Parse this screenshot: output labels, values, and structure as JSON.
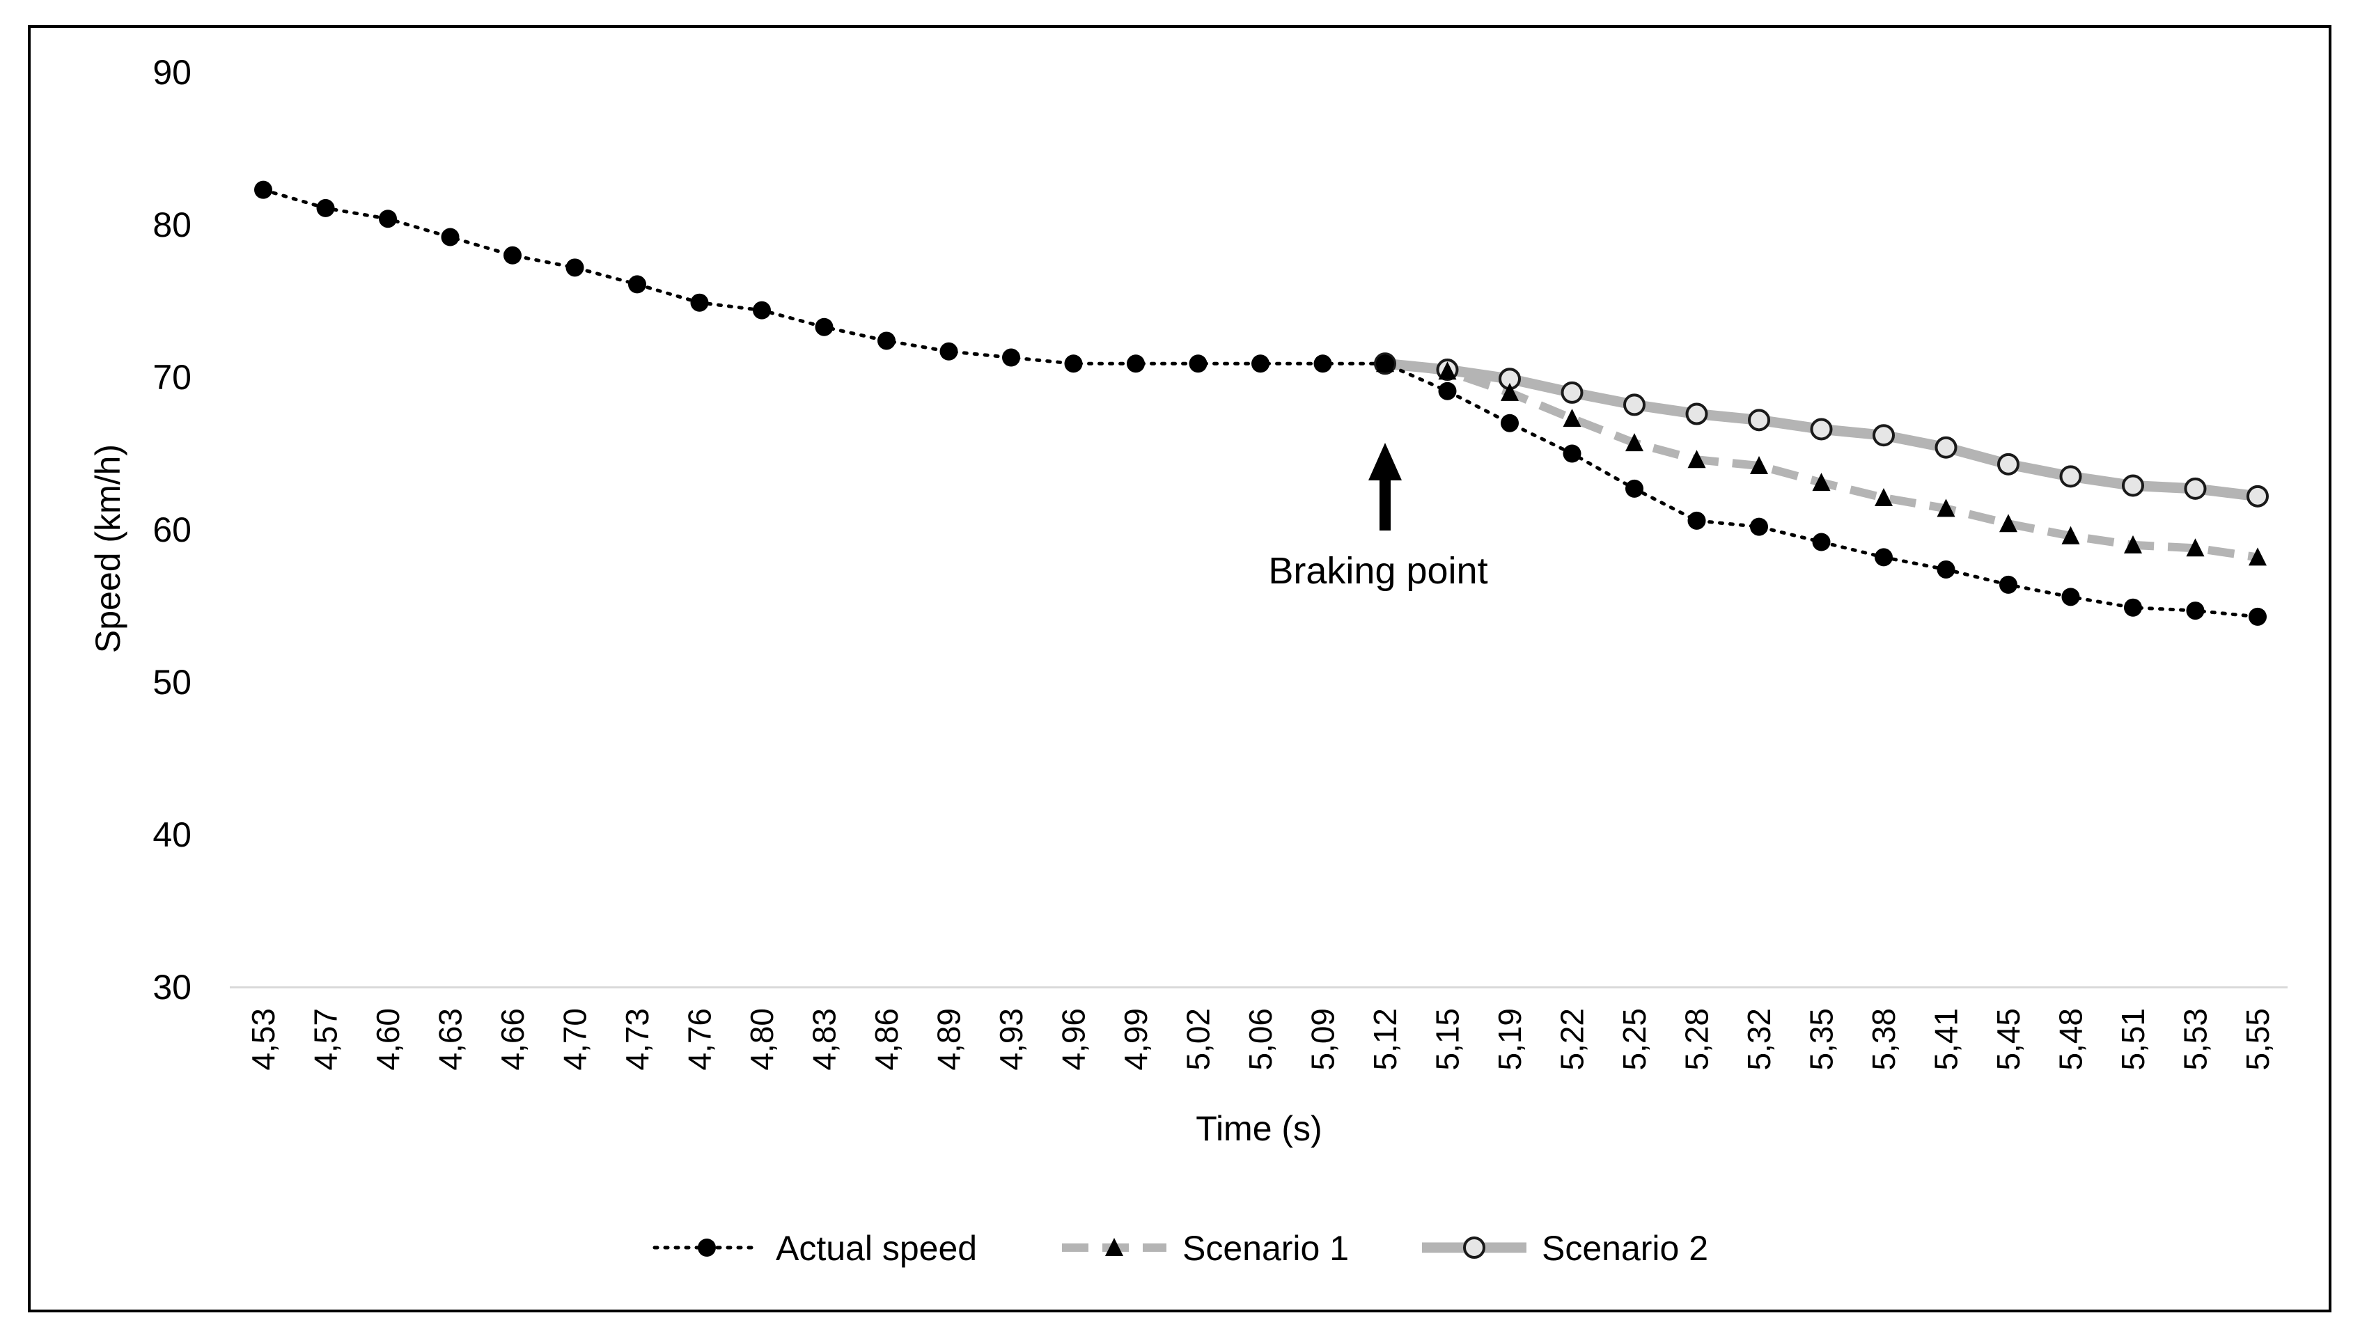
{
  "chart_data": {
    "type": "line",
    "title": "",
    "xlabel": "Time (s)",
    "ylabel": "Speed (km/h)",
    "ylim": [
      30,
      90
    ],
    "yticks": [
      "30",
      "40",
      "50",
      "60",
      "70",
      "80",
      "90"
    ],
    "grid": false,
    "legend_position": "bottom-center",
    "categories": [
      "4,53",
      "4,57",
      "4,60",
      "4,63",
      "4,66",
      "4,70",
      "4,73",
      "4,76",
      "4,80",
      "4,83",
      "4,86",
      "4,89",
      "4,93",
      "4,96",
      "4,99",
      "5,02",
      "5,06",
      "5,09",
      "5,12",
      "5,15",
      "5,19",
      "5,22",
      "5,25",
      "5,28",
      "5,32",
      "5,35",
      "5,38",
      "5,41",
      "5,45",
      "5,48",
      "5,51",
      "5,53",
      "5,55"
    ],
    "series": [
      {
        "name": "Actual speed",
        "color": "#000000",
        "marker": "circle-filled",
        "line_style": "dotted",
        "values": [
          82.3,
          81.1,
          80.4,
          79.2,
          78.0,
          77.2,
          76.1,
          74.9,
          74.4,
          73.3,
          72.4,
          71.7,
          71.3,
          70.9,
          70.9,
          70.9,
          70.9,
          70.9,
          70.9,
          69.1,
          67.0,
          65.0,
          62.7,
          60.6,
          60.2,
          59.2,
          58.2,
          57.4,
          56.4,
          55.6,
          54.9,
          54.7,
          54.3
        ]
      },
      {
        "name": "Scenario 1",
        "color": "#b4b4b4",
        "marker": "triangle-filled",
        "line_style": "dashed",
        "values": [
          null,
          null,
          null,
          null,
          null,
          null,
          null,
          null,
          null,
          null,
          null,
          null,
          null,
          null,
          null,
          null,
          null,
          null,
          70.9,
          70.4,
          69.0,
          67.3,
          65.7,
          64.6,
          64.2,
          63.1,
          62.1,
          61.4,
          60.4,
          59.6,
          59.0,
          58.8,
          58.2
        ]
      },
      {
        "name": "Scenario 2",
        "color": "#b4b4b4",
        "marker": "circle-open",
        "line_style": "solid",
        "values": [
          null,
          null,
          null,
          null,
          null,
          null,
          null,
          null,
          null,
          null,
          null,
          null,
          null,
          null,
          null,
          null,
          null,
          null,
          70.9,
          70.5,
          69.9,
          69.0,
          68.2,
          67.6,
          67.2,
          66.6,
          66.2,
          65.4,
          64.3,
          63.5,
          62.9,
          62.7,
          62.2
        ]
      }
    ],
    "annotations": [
      {
        "text": "Braking point",
        "category": "5,12",
        "arrow": "up"
      }
    ]
  }
}
